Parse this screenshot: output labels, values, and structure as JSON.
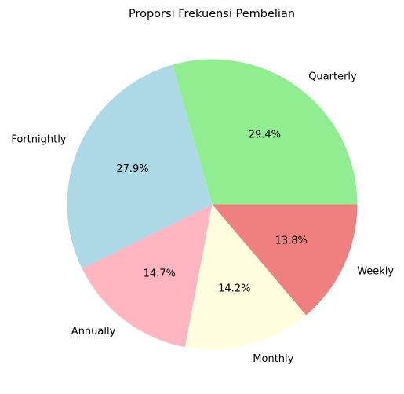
{
  "chart_data": {
    "type": "pie",
    "title": "Proporsi Frekuensi Pembelian",
    "categories": [
      "Quarterly",
      "Fortnightly",
      "Annually",
      "Monthly",
      "Weekly"
    ],
    "values": [
      29.4,
      27.9,
      14.7,
      14.2,
      13.8
    ],
    "percent_labels": [
      "29.4%",
      "27.9%",
      "14.7%",
      "14.2%",
      "13.8%"
    ],
    "colors": [
      "#90ee90",
      "#add8e6",
      "#ffb6c1",
      "#ffffe0",
      "#f08080"
    ],
    "start_angle_deg": 0,
    "direction": "counterclockwise",
    "legend": "none"
  }
}
